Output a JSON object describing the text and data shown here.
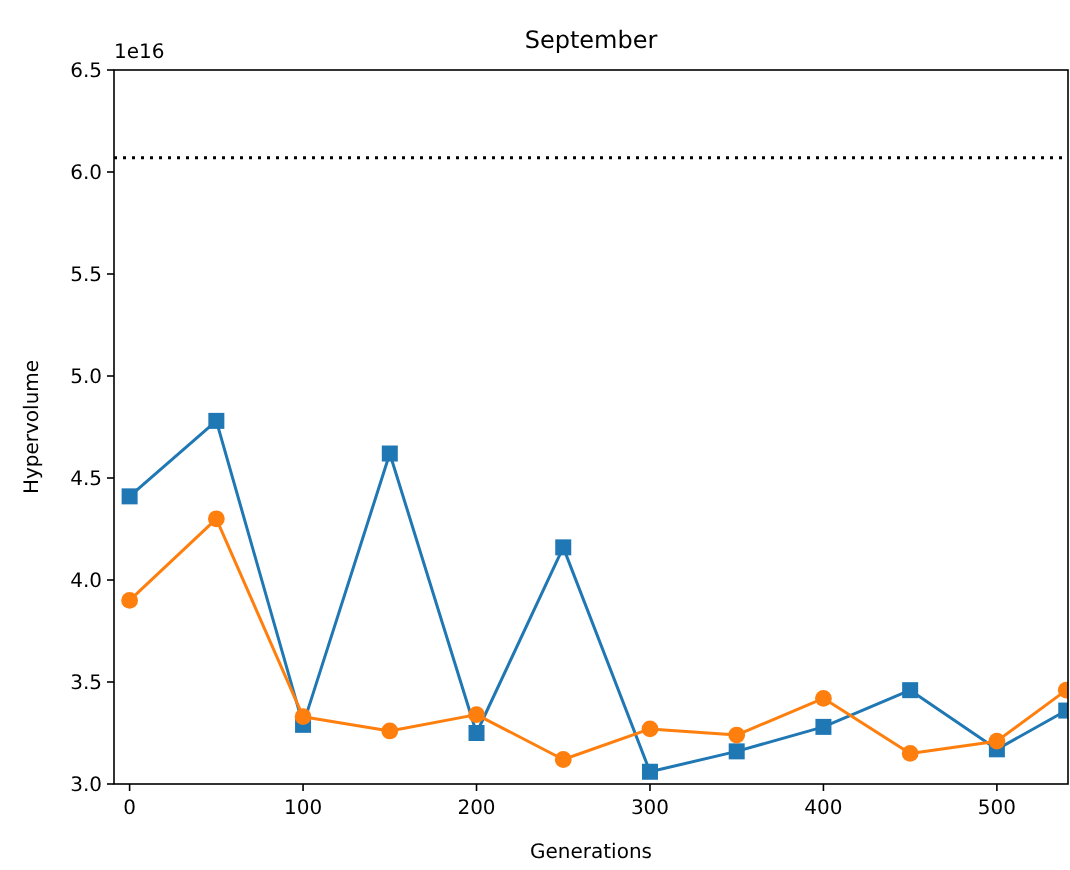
{
  "chart_data": {
    "type": "line",
    "title": "September",
    "xlabel": "Generations",
    "ylabel": "Hypervolume",
    "annotations": [
      "1e16"
    ],
    "x": [
      0,
      50,
      100,
      150,
      200,
      250,
      300,
      350,
      400,
      450,
      500,
      540
    ],
    "series": [
      {
        "color": "#1f77b4",
        "marker": "square",
        "values": [
          4.41,
          4.78,
          3.29,
          4.62,
          3.25,
          4.16,
          3.06,
          3.16,
          3.28,
          3.46,
          3.17,
          3.36
        ]
      },
      {
        "color": "#ff7f0e",
        "marker": "circle",
        "values": [
          3.9,
          4.3,
          3.33,
          3.26,
          3.34,
          3.12,
          3.27,
          3.24,
          3.42,
          3.15,
          3.21,
          3.46
        ]
      }
    ],
    "ref_lines": [
      {
        "axis": "y",
        "value": 6.07,
        "color": "#000000",
        "line_style": "dotted"
      }
    ],
    "xlim": [
      -9,
      541
    ],
    "xticks": [
      0,
      100,
      200,
      300,
      400,
      500
    ],
    "ylim": [
      3.0,
      6.5
    ],
    "yticks": [
      {
        "value": 3.0,
        "label": "3.0"
      },
      {
        "value": 3.5,
        "label": "3.5"
      },
      {
        "value": 4.0,
        "label": "4.0"
      },
      {
        "value": 4.5,
        "label": "4.5"
      },
      {
        "value": 5.0,
        "label": "5.0"
      },
      {
        "value": 5.5,
        "label": "5.5"
      },
      {
        "value": 6.0,
        "label": "6.0"
      },
      {
        "value": 6.5,
        "label": "6.5"
      }
    ],
    "grid": false
  }
}
